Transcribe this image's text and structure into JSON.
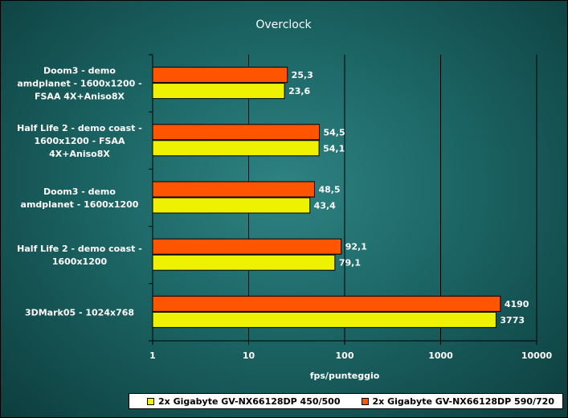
{
  "chart_data": {
    "type": "bar",
    "orientation": "horizontal",
    "title": "Overclock",
    "xlabel": "fps/punteggio",
    "ylabel": "",
    "x_scale": "log",
    "xlim": [
      1,
      10000
    ],
    "x_ticks": [
      "1",
      "10",
      "100",
      "1000",
      "10000"
    ],
    "grid": true,
    "legend_position": "bottom",
    "categories": [
      [
        "Doom3 - demo",
        "amdplanet - 1600x1200 -",
        "FSAA 4X+Aniso8X"
      ],
      [
        "Half Life 2 - demo coast -",
        "1600x1200 - FSAA",
        "4X+Aniso8X"
      ],
      [
        "Doom3 - demo",
        "amdplanet - 1600x1200"
      ],
      [
        "Half Life 2 - demo coast -",
        "1600x1200"
      ],
      [
        "3DMark05 - 1024x768"
      ]
    ],
    "series": [
      {
        "name": "2x Gigabyte GV-NX66128DP 590/720",
        "color": "#ff5500",
        "values": [
          25.3,
          54.5,
          48.5,
          92.1,
          4190
        ],
        "labels": [
          "25,3",
          "54,5",
          "48,5",
          "92,1",
          "4190"
        ]
      },
      {
        "name": "2x Gigabyte GV-NX66128DP 450/500",
        "color": "#eef200",
        "values": [
          23.6,
          54.1,
          43.4,
          79.1,
          3773
        ],
        "labels": [
          "23,6",
          "54,1",
          "43,4",
          "79,1",
          "3773"
        ]
      }
    ]
  },
  "legend": {
    "item1_label": "2x Gigabyte GV-NX66128DP 450/500",
    "item1_color": "#eef200",
    "item2_label": "2x Gigabyte GV-NX66128DP 590/720",
    "item2_color": "#ff5500"
  }
}
